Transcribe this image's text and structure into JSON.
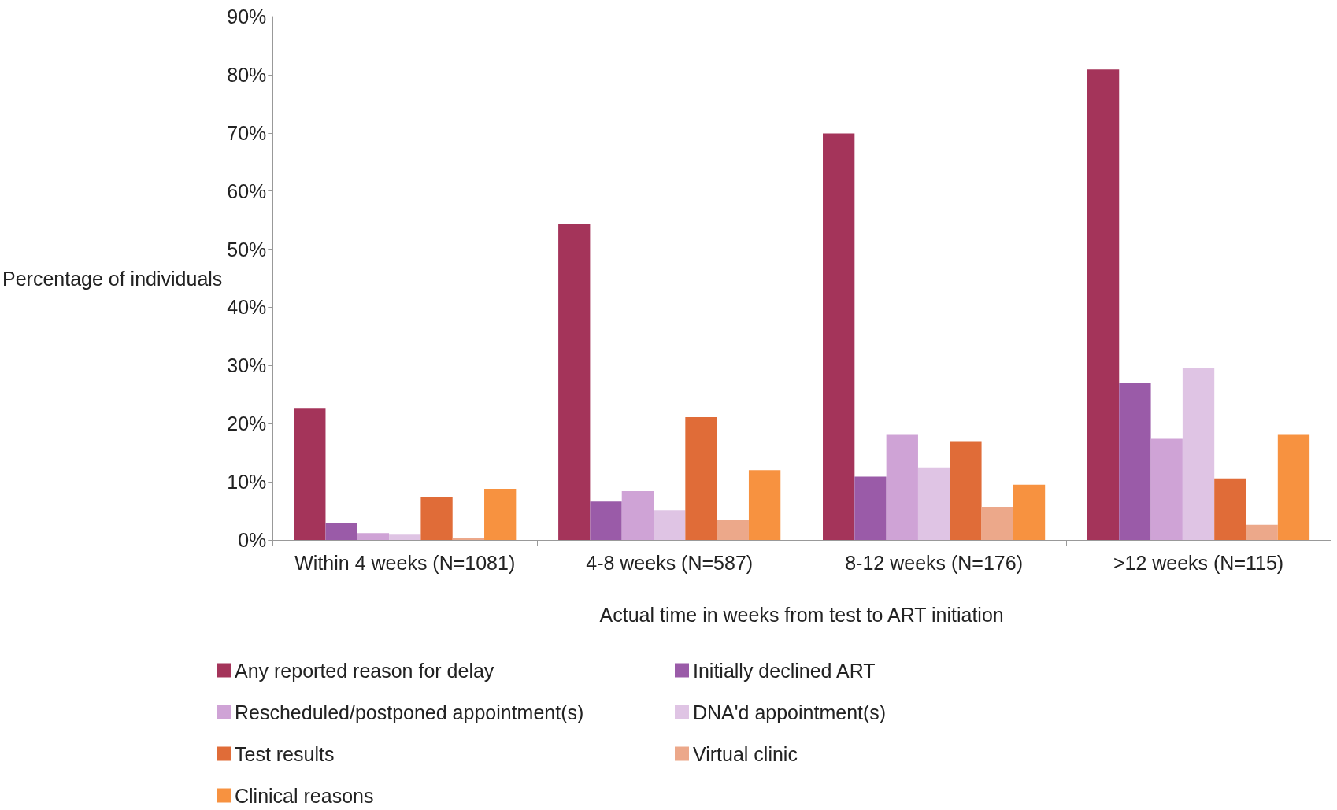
{
  "chart_data": {
    "type": "bar",
    "xlabel": "Actual time in weeks from test to ART initiation",
    "ylabel": "Percentage of individuals",
    "categories": [
      "Within 4 weeks (N=1081)",
      "4-8 weeks (N=587)",
      "8-12 weeks (N=176)",
      ">12 weeks (N=115)"
    ],
    "series": [
      {
        "name": "Any reported reason for delay",
        "color": "#a4345a",
        "values": [
          22.7,
          54.4,
          69.9,
          80.9
        ]
      },
      {
        "name": "Initially declined ART",
        "color": "#9a5ba8",
        "values": [
          2.9,
          6.6,
          10.9,
          27.0
        ]
      },
      {
        "name": "Rescheduled/postponed appointment(s)",
        "color": "#cfa3d6",
        "values": [
          1.2,
          8.4,
          18.2,
          17.4
        ]
      },
      {
        "name": "DNA'd appointment(s)",
        "color": "#dfc4e4",
        "values": [
          0.9,
          5.1,
          12.5,
          29.6
        ]
      },
      {
        "name": "Test results",
        "color": "#e06c38",
        "values": [
          7.3,
          21.1,
          17.0,
          10.6
        ]
      },
      {
        "name": "Virtual clinic",
        "color": "#eca88a",
        "values": [
          0.4,
          3.4,
          5.7,
          2.6
        ]
      },
      {
        "name": "Clinical reasons",
        "color": "#f79240",
        "values": [
          8.8,
          12.0,
          9.5,
          18.2
        ]
      }
    ],
    "ylim": [
      0,
      90
    ],
    "yticks": [
      {
        "value": 0,
        "label": "0%"
      },
      {
        "value": 10,
        "label": "10%"
      },
      {
        "value": 20,
        "label": "20%"
      },
      {
        "value": 30,
        "label": "30%"
      },
      {
        "value": 40,
        "label": "40%"
      },
      {
        "value": 50,
        "label": "50%"
      },
      {
        "value": 60,
        "label": "60%"
      },
      {
        "value": 70,
        "label": "70%"
      },
      {
        "value": 80,
        "label": "80%"
      },
      {
        "value": 90,
        "label": "90%"
      }
    ],
    "grid": false,
    "legend": "bottom"
  }
}
